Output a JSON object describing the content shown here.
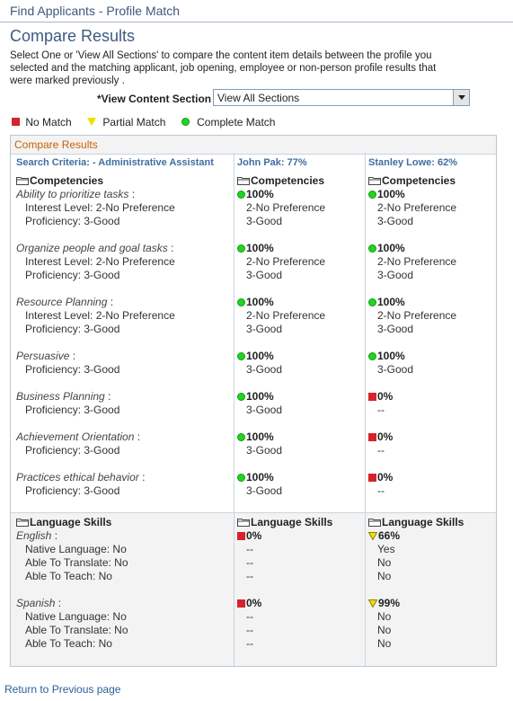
{
  "header": {
    "title": "Find Applicants - Profile Match"
  },
  "page_title": "Compare Results",
  "instructions": "Select One or 'View All Sections' to compare the content item details between  the profile you selected and the matching applicant, job opening, employee or non-person profile results that were marked previously .",
  "view_section": {
    "label": "*View Content Section",
    "value": "View All Sections"
  },
  "legend": {
    "no_match": "No Match",
    "partial_match": "Partial Match",
    "complete_match": "Complete Match"
  },
  "grid": {
    "caption": "Compare Results",
    "columns": [
      "Search Criteria: - Administrative Assistant",
      "John Pak: 77%",
      "Stanley Lowe: 62%"
    ]
  },
  "competencies": {
    "heading": "Competencies",
    "items": [
      {
        "name": "Ability to prioritize tasks",
        "sep": " :",
        "attrs": [
          "Interest Level: 2-No Preference",
          "Proficiency: 3-Good"
        ],
        "c1": {
          "status": "complete",
          "pct": "100%",
          "vals": [
            "2-No Preference",
            "3-Good"
          ]
        },
        "c2": {
          "status": "complete",
          "pct": "100%",
          "vals": [
            "2-No Preference",
            "3-Good"
          ]
        }
      },
      {
        "name": "Organize people and goal tasks",
        "sep": " :",
        "attrs": [
          "Interest Level: 2-No Preference",
          "Proficiency: 3-Good"
        ],
        "c1": {
          "status": "complete",
          "pct": "100%",
          "vals": [
            "2-No Preference",
            "3-Good"
          ]
        },
        "c2": {
          "status": "complete",
          "pct": "100%",
          "vals": [
            "2-No Preference",
            "3-Good"
          ]
        }
      },
      {
        "name": "Resource Planning",
        "sep": " :",
        "attrs": [
          "Interest Level: 2-No Preference",
          "Proficiency: 3-Good"
        ],
        "c1": {
          "status": "complete",
          "pct": "100%",
          "vals": [
            "2-No Preference",
            "3-Good"
          ]
        },
        "c2": {
          "status": "complete",
          "pct": "100%",
          "vals": [
            "2-No Preference",
            "3-Good"
          ]
        }
      },
      {
        "name": "Persuasive",
        "sep": " :",
        "attrs": [
          "Proficiency: 3-Good"
        ],
        "c1": {
          "status": "complete",
          "pct": "100%",
          "vals": [
            "3-Good"
          ]
        },
        "c2": {
          "status": "complete",
          "pct": "100%",
          "vals": [
            "3-Good"
          ]
        }
      },
      {
        "name": "Business Planning",
        "sep": " :",
        "attrs": [
          "Proficiency: 3-Good"
        ],
        "c1": {
          "status": "complete",
          "pct": "100%",
          "vals": [
            "3-Good"
          ]
        },
        "c2": {
          "status": "none",
          "pct": "0%",
          "vals": [
            "--"
          ]
        }
      },
      {
        "name": "Achievement Orientation",
        "sep": " :",
        "attrs": [
          "Proficiency: 3-Good"
        ],
        "c1": {
          "status": "complete",
          "pct": "100%",
          "vals": [
            "3-Good"
          ]
        },
        "c2": {
          "status": "none",
          "pct": "0%",
          "vals": [
            "--"
          ]
        }
      },
      {
        "name": "Practices ethical behavior",
        "sep": " :",
        "attrs": [
          "Proficiency: 3-Good"
        ],
        "c1": {
          "status": "complete",
          "pct": "100%",
          "vals": [
            "3-Good"
          ]
        },
        "c2": {
          "status": "none",
          "pct": "0%",
          "vals": [
            "--"
          ]
        }
      }
    ]
  },
  "language_skills": {
    "heading": "Language Skills",
    "items": [
      {
        "name": "English",
        "sep": " :",
        "attrs": [
          "Native Language: No",
          "Able To Translate: No",
          "Able To Teach: No"
        ],
        "c1": {
          "status": "none",
          "pct": "0%",
          "vals": [
            "--",
            "--",
            "--"
          ]
        },
        "c2": {
          "status": "partial",
          "pct": "66%",
          "vals": [
            "Yes",
            "No",
            "No"
          ]
        }
      },
      {
        "name": "Spanish",
        "sep": " :",
        "attrs": [
          "Native Language: No",
          "Able To Translate: No",
          "Able To Teach: No"
        ],
        "c1": {
          "status": "none",
          "pct": "0%",
          "vals": [
            "--",
            "--",
            "--"
          ]
        },
        "c2": {
          "status": "partial",
          "pct": "99%",
          "vals": [
            "No",
            "No",
            "No"
          ]
        }
      }
    ]
  },
  "return_link": "Return to Previous page",
  "colors": {
    "link": "#2d5e99",
    "title": "#3d5a80",
    "caption": "#c86000",
    "no_match": "#d6232b",
    "partial": "#f0e000",
    "complete": "#1fd61f"
  }
}
